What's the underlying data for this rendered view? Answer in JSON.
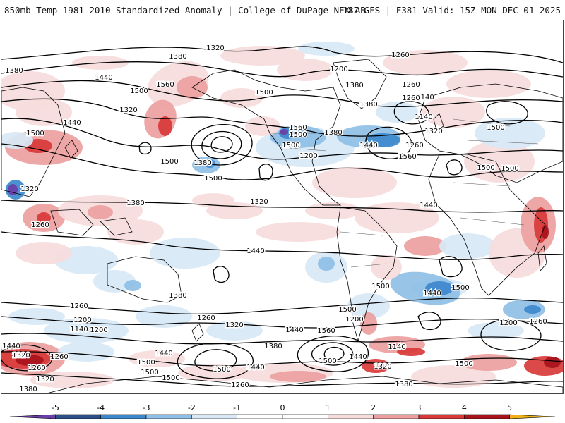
{
  "header": {
    "title_left": "850mb Temp 1981-2010 Standardized Anomaly | College of DuPage NEXLAB",
    "title_right": "18Z GFS | F381 Valid: 15Z MON DEC 01 2025"
  },
  "colors": {
    "m5": "#6a3fa8",
    "m4": "#2c4f86",
    "m3": "#3d88cc",
    "m2": "#8fbfe6",
    "m1": "#d8e8f6",
    "p1": "#f7dcdc",
    "p2": "#ec9f9f",
    "p3": "#d83a3a",
    "p4": "#a8141c",
    "p5": "#f0b21a",
    "contour": "#000000",
    "coast": "#000000",
    "border": "#555555"
  },
  "colorbar": {
    "labels": [
      "-5",
      "-4",
      "-3",
      "-2",
      "-1",
      "0",
      "1",
      "2",
      "3",
      "4",
      "5"
    ]
  },
  "contours": {
    "labels": [
      "1320",
      "1380",
      "1260",
      "1200",
      "1260",
      "1140",
      "1380",
      "1440",
      "1500",
      "1560",
      "1500",
      "1440",
      "1500",
      "1560",
      "1500",
      "1380",
      "1440",
      "1500",
      "1560",
      "1500",
      "1380",
      "1500",
      "1500",
      "1500",
      "1500",
      "1440",
      "1380",
      "1320",
      "1440",
      "1380",
      "1320",
      "1260",
      "1260",
      "1200",
      "1140",
      "1200",
      "1260",
      "1320",
      "1380",
      "1440",
      "1500",
      "1500",
      "1440",
      "1500",
      "1200",
      "1260",
      "1140",
      "1260",
      "1320",
      "1380",
      "1440",
      "1320",
      "1260",
      "1260",
      "1320",
      "1380",
      "1440",
      "1500",
      "1500",
      "1500",
      "1500",
      "1440",
      "1560",
      "1500",
      "1440",
      "1200",
      "1320",
      "1140",
      "1380",
      "1500",
      "1260",
      "1200",
      "1320",
      "1260",
      "1380"
    ]
  }
}
